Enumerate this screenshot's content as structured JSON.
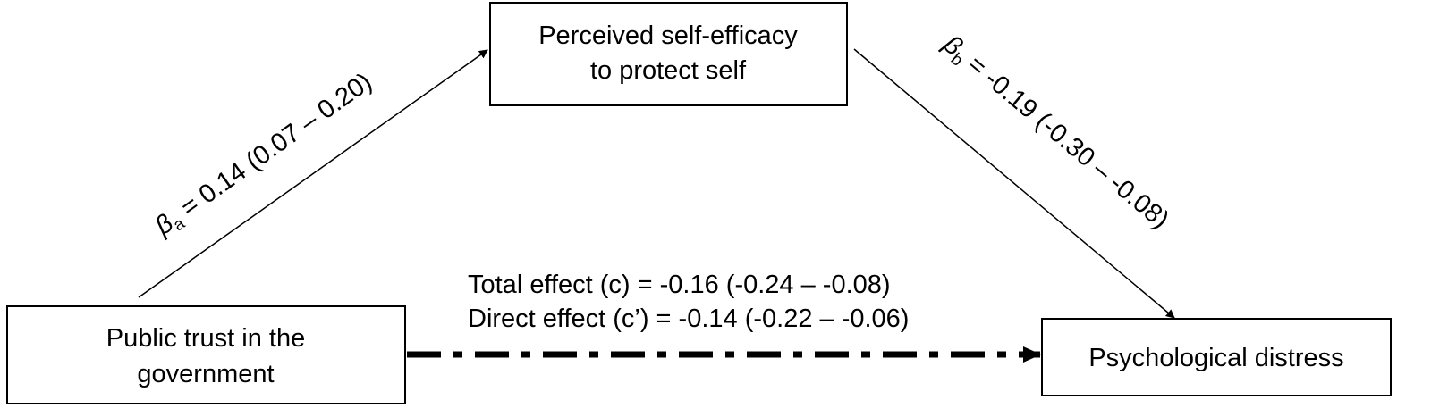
{
  "nodes": [
    {
      "lines": [
        "Perceived self-efficacy",
        "to protect self"
      ]
    },
    {
      "lines": [
        "Public trust in the",
        "government"
      ]
    },
    {
      "lines": [
        "Psychological distress"
      ]
    }
  ],
  "edges": [
    {
      "symbol": "β",
      "subscript": "a",
      "label": " = 0.14 (0.07 – 0.20)"
    },
    {
      "symbol": "β",
      "subscript": "b",
      "label": " = -0.19 (-0.30 – -0.08)"
    }
  ],
  "effects": [
    "Total effect (c) = -0.16 (-0.24 – -0.08)",
    "Direct effect (c’) = -0.14 (-0.22 – -0.06)"
  ]
}
